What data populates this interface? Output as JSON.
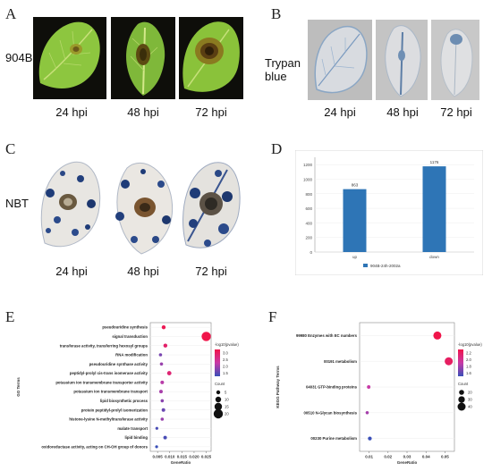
{
  "panels": {
    "A": {
      "letter": "A",
      "row_label": "904B",
      "times": [
        "24 hpi",
        "48 hpi",
        "72 hpi"
      ]
    },
    "B": {
      "letter": "B",
      "row_label_line1": "Trypan",
      "row_label_line2": "blue",
      "times": [
        "24 hpi",
        "48 hpi",
        "72 hpi"
      ]
    },
    "C": {
      "letter": "C",
      "row_label": "NBT",
      "times": [
        "24 hpi",
        "48 hpi",
        "72 hpi"
      ]
    },
    "D": {
      "letter": "D"
    },
    "E": {
      "letter": "E"
    },
    "F": {
      "letter": "F"
    }
  },
  "chart_data": [
    {
      "type": "bar",
      "panel": "D",
      "categories": [
        "up",
        "down"
      ],
      "values": [
        863,
        1176
      ],
      "data_labels": [
        "863",
        "1176"
      ],
      "legend": "904B-24h-2002a",
      "yticks": [
        "0",
        "200",
        "400",
        "600",
        "800",
        "1000",
        "1200"
      ],
      "ylim": [
        0,
        1300
      ],
      "color": "#2e75b6"
    },
    {
      "type": "scatter",
      "panel": "E",
      "ylabel": "GO Terms",
      "xlabel": "GeneRatio",
      "xticks": [
        "0.005",
        "0.010",
        "0.015",
        "0.020",
        "0.025"
      ],
      "xlim": [
        0.002,
        0.027
      ],
      "categories": [
        "pseudouridine synthesis",
        "signal transduction",
        "transferase activity, transferring hexosyl groups",
        "RNA modification",
        "pseudouridine synthase activity",
        "peptidyl-prolyl cis-trans isomerase activity",
        "potassium ion transmembrane transporter activity",
        "potassium ion transmembrane transport",
        "lipid biosynthetic process",
        "protein peptidyl-prolyl isomerization",
        "histone-lysine N-methyltransferase activity",
        "malate transport",
        "lipid binding",
        "oxidoreductase activity, acting on CH-OH group of donors"
      ],
      "x": [
        0.0075,
        0.025,
        0.0082,
        0.0062,
        0.0066,
        0.0098,
        0.0069,
        0.0064,
        0.0069,
        0.0074,
        0.0069,
        0.0047,
        0.0081,
        0.0046
      ],
      "count": [
        5,
        20,
        5,
        3,
        3,
        6,
        4,
        4,
        3,
        4,
        3,
        2,
        4,
        2
      ],
      "neglog10p": [
        3.1,
        3.2,
        2.9,
        1.8,
        2.0,
        2.8,
        2.2,
        2.1,
        1.9,
        1.7,
        2.0,
        1.5,
        1.5,
        1.4
      ],
      "color_legend_title": "-log10(pvalue)",
      "color_ticks": [
        "3.0",
        "2.5",
        "2.0",
        "1.5"
      ],
      "size_legend_title": "Count",
      "size_ticks": [
        "5",
        "10",
        "15",
        "20"
      ]
    },
    {
      "type": "scatter",
      "panel": "F",
      "ylabel": "KEGG Pathway Terms",
      "xlabel": "GeneRatio",
      "xticks": [
        "0.01",
        "0.02",
        "0.03",
        "0.04",
        "0.05"
      ],
      "xlim": [
        0.005,
        0.055
      ],
      "categories": [
        "99980 Enzymes with EC numbers",
        "00191 metabolism",
        "04031 GTP-binding proteins",
        "00510 N-Glycan biosynthesis",
        "00230 Purine metabolism"
      ],
      "x": [
        0.046,
        0.052,
        0.0098,
        0.009,
        0.0104
      ],
      "count": [
        40,
        40,
        10,
        8,
        12
      ],
      "neglog10p": [
        2.3,
        2.2,
        1.9,
        1.8,
        1.5
      ],
      "color_legend_title": "-log10(pvalue)",
      "color_ticks": [
        "2.2",
        "2.0",
        "1.8",
        "1.6"
      ],
      "size_legend_title": "Count",
      "size_ticks": [
        "20",
        "30",
        "40"
      ]
    }
  ]
}
